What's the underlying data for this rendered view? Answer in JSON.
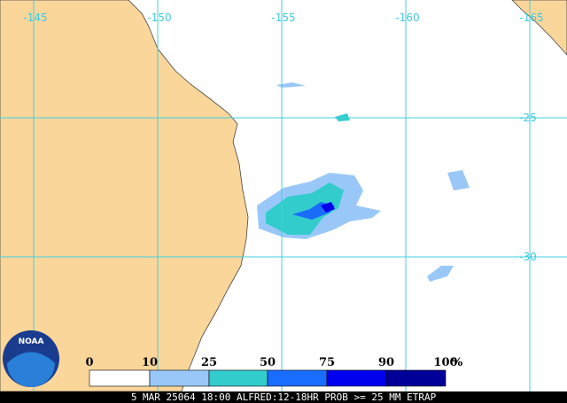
{
  "map": {
    "lon_labels": [
      "-145",
      "-150",
      "-155",
      "-160",
      "-165"
    ],
    "lat_labels": [
      "-25",
      "-30"
    ],
    "legend": {
      "labels": [
        "0",
        "10",
        "25",
        "50",
        "75",
        "90",
        "100"
      ],
      "unit": "%",
      "colors": [
        "#ffffff",
        "#99c8f8",
        "#33cccc",
        "#1a6cff",
        "#0000ee",
        "#000099"
      ]
    },
    "caption": "5 MAR 25064 18:00 ALFRED:12-18HR PROB >= 25 MM ETRAP",
    "logo": "NOAA"
  }
}
